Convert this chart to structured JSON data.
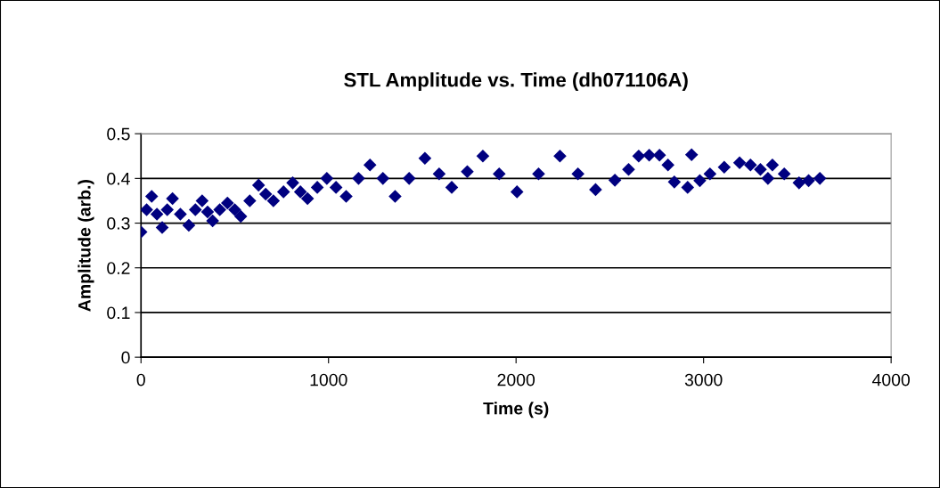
{
  "chart_data": {
    "type": "scatter",
    "title": "STL Amplitude vs. Time (dh071106A)",
    "xlabel": "Time (s)",
    "ylabel": "Amplitude (arb.)",
    "series": [
      {
        "color": "#000080",
        "x": [
          0,
          30,
          57,
          85,
          113,
          140,
          168,
          210,
          255,
          290,
          326,
          355,
          382,
          420,
          461,
          500,
          532,
          580,
          627,
          665,
          706,
          760,
          809,
          850,
          888,
          940,
          991,
          1040,
          1094,
          1160,
          1221,
          1290,
          1355,
          1430,
          1514,
          1590,
          1657,
          1740,
          1823,
          1910,
          2005,
          2120,
          2234,
          2330,
          2424,
          2527,
          2600,
          2654,
          2710,
          2765,
          2810,
          2844,
          2915,
          2936,
          2980,
          3034,
          3110,
          3192,
          3250,
          3303,
          3343,
          3367,
          3430,
          3509,
          3560,
          3620
        ],
        "values": [
          0.28,
          0.33,
          0.36,
          0.32,
          0.29,
          0.33,
          0.355,
          0.32,
          0.295,
          0.33,
          0.35,
          0.325,
          0.305,
          0.33,
          0.345,
          0.33,
          0.315,
          0.35,
          0.385,
          0.365,
          0.35,
          0.37,
          0.39,
          0.37,
          0.355,
          0.38,
          0.4,
          0.38,
          0.36,
          0.4,
          0.43,
          0.4,
          0.36,
          0.4,
          0.445,
          0.41,
          0.38,
          0.415,
          0.45,
          0.41,
          0.37,
          0.41,
          0.45,
          0.41,
          0.375,
          0.396,
          0.42,
          0.45,
          0.452,
          0.452,
          0.43,
          0.392,
          0.38,
          0.453,
          0.395,
          0.41,
          0.425,
          0.435,
          0.43,
          0.42,
          0.4,
          0.43,
          0.41,
          0.39,
          0.395,
          0.4
        ]
      }
    ],
    "marker": "diamond",
    "xlim": [
      0,
      4000
    ],
    "xticks": [
      0,
      1000,
      2000,
      3000,
      4000
    ],
    "ylim": [
      0,
      0.5
    ],
    "yticks": [
      0,
      0.1,
      0.2,
      0.3,
      0.4,
      0.5
    ],
    "grid": "y"
  }
}
